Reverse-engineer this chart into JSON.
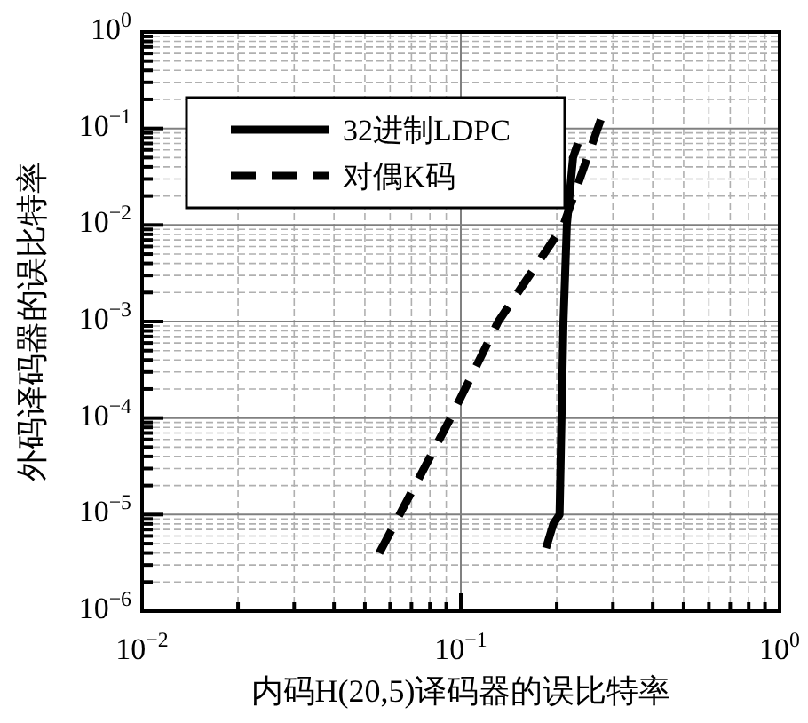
{
  "chart_data": {
    "type": "line",
    "xlabel": "内码H(20,5)译码器的误比特率",
    "ylabel": "外码译码器的误比特率",
    "log": "xy",
    "grid": true,
    "legend": "top left",
    "xlim": [
      0.01,
      1
    ],
    "xticks": [
      {
        "value": 0.01,
        "label": "10$^{−2}$"
      },
      {
        "value": 0.1,
        "label": "10$^{−1}$"
      },
      {
        "value": 1,
        "label": "10$^{0}$"
      }
    ],
    "ylim": [
      1e-06,
      1
    ],
    "yticks": [
      {
        "value": 1e-06,
        "label": "10$^{−6}$"
      },
      {
        "value": 1e-05,
        "label": "10$^{−5}$"
      },
      {
        "value": 0.0001,
        "label": "10$^{−4}$"
      },
      {
        "value": 0.001,
        "label": "10$^{−3}$"
      },
      {
        "value": 0.01,
        "label": "10$^{−2}$"
      },
      {
        "value": 0.1,
        "label": "10$^{−1}$"
      },
      {
        "value": 1,
        "label": "10$^{0}$"
      }
    ],
    "series": [
      {
        "name": "32进制LDPC",
        "color": "#000000",
        "line_style": "solid",
        "x": [
          0.185,
          0.195,
          0.204,
          0.21,
          0.215,
          0.225,
          0.233
        ],
        "values": [
          4.5e-06,
          8e-06,
          1e-05,
          0.001,
          0.01,
          0.05,
          0.07
        ]
      },
      {
        "name": "对偶K码",
        "color": "#000000",
        "line_style": "dashed",
        "x": [
          0.0555,
          0.093,
          0.131,
          0.21,
          0.275
        ],
        "values": [
          4e-06,
          0.0001,
          0.001,
          0.01,
          0.125
        ]
      }
    ]
  }
}
